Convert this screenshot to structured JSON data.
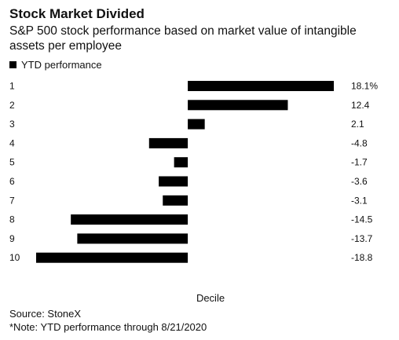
{
  "chart_data": {
    "type": "bar",
    "orientation": "horizontal",
    "title": "Stock Market Divided",
    "subtitle": "S&P 500 stock performance based on market value of intangible assets per employee",
    "categories": [
      "1",
      "2",
      "3",
      "4",
      "5",
      "6",
      "7",
      "8",
      "9",
      "10"
    ],
    "series": [
      {
        "name": "YTD performance",
        "values": [
          18.1,
          12.4,
          2.1,
          -4.8,
          -1.7,
          -3.6,
          -3.1,
          -14.5,
          -13.7,
          -18.8
        ],
        "value_labels": [
          "18.1%",
          "12.4",
          "2.1",
          "-4.8",
          "-1.7",
          "-3.6",
          "-3.1",
          "-14.5",
          "-13.7",
          "-18.8"
        ],
        "color": "#000000"
      }
    ],
    "xlabel": "Decile",
    "xlim": [
      -18.8,
      18.1
    ],
    "grid": false,
    "legend_position": "top-left"
  },
  "footer": {
    "source": "Source: StoneX",
    "note": "*Note: YTD performance through 8/21/2020"
  }
}
